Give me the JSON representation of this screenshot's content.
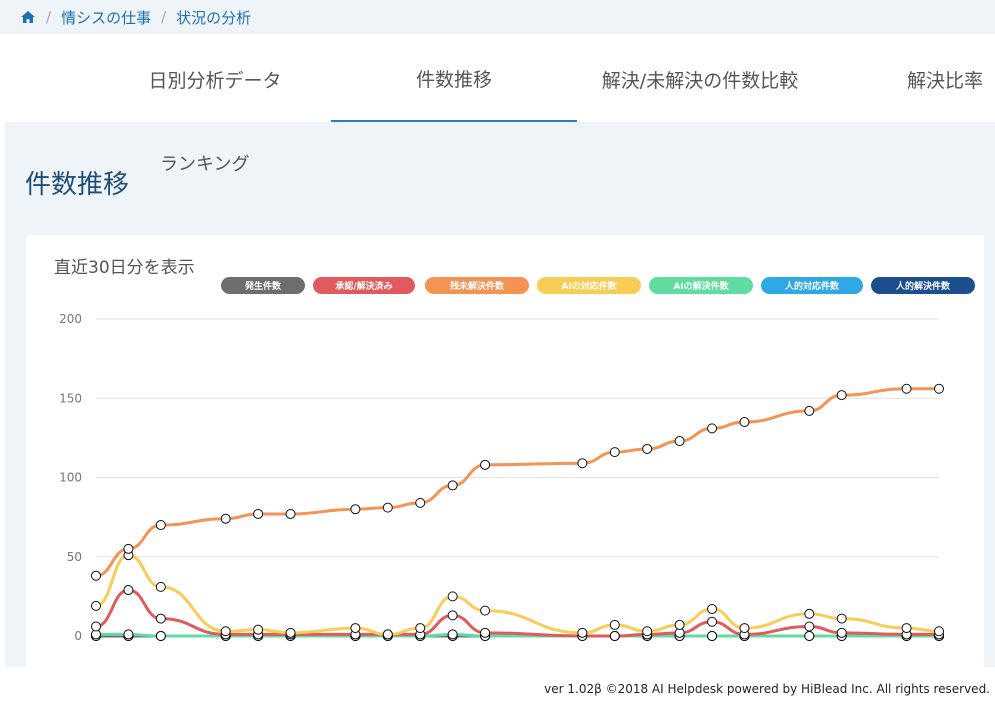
{
  "breadcrumb": {
    "home_icon": "home-icon",
    "items": [
      "情シスの仕事",
      "状況の分析"
    ]
  },
  "tabs": [
    {
      "label": "日別分析データ",
      "active": false
    },
    {
      "label": "件数推移",
      "active": true
    },
    {
      "label": "解決/未解決の件数比較",
      "active": false
    },
    {
      "label": "解決比率",
      "active": false
    }
  ],
  "page": {
    "title": "件数推移",
    "ranking_label": "ランキング"
  },
  "card": {
    "title": "直近30日分を表示"
  },
  "footer": "ver 1.02β ©2018 AI Helpdesk powered by HiBlead Inc. All rights reserved.",
  "chart_data": {
    "type": "line",
    "title": "",
    "xlabel": "",
    "ylabel": "",
    "ylim": [
      0,
      200
    ],
    "yticks": [
      0,
      50,
      100,
      150,
      200
    ],
    "grid": true,
    "legend_position": "top-right",
    "x": [
      0,
      1,
      2,
      4,
      5,
      6,
      8,
      9,
      10,
      11,
      12,
      15,
      16,
      17,
      18,
      19,
      20,
      22,
      23,
      25,
      26
    ],
    "series": [
      {
        "name": "発生件数",
        "color": "#6e6e6e",
        "values": [
          0,
          0,
          0,
          0,
          0,
          0,
          0,
          0,
          0,
          0,
          0,
          0,
          0,
          0,
          0,
          0,
          0,
          0,
          0,
          0,
          0
        ]
      },
      {
        "name": "承認/解決済み",
        "color": "#e05a5e",
        "values": [
          6,
          29,
          11,
          1,
          1,
          1,
          1,
          1,
          1,
          13,
          2,
          0,
          0,
          1,
          2,
          9,
          1,
          6,
          2,
          1,
          1
        ]
      },
      {
        "name": "残未解決件数",
        "color": "#f39454",
        "values": [
          38,
          55,
          70,
          74,
          77,
          77,
          80,
          81,
          84,
          95,
          108,
          109,
          116,
          118,
          123,
          131,
          135,
          142,
          152,
          156,
          156
        ]
      },
      {
        "name": "AIの対応件数",
        "color": "#f8cd55",
        "values": [
          19,
          51,
          31,
          3,
          4,
          2,
          5,
          1,
          5,
          25,
          16,
          2,
          7,
          3,
          7,
          17,
          5,
          14,
          11,
          5,
          3
        ]
      },
      {
        "name": "AIの解決件数",
        "color": "#60dca0",
        "values": [
          1,
          1,
          0,
          0,
          0,
          0,
          0,
          0,
          0,
          1,
          0,
          0,
          0,
          0,
          0,
          0,
          0,
          0,
          0,
          0,
          0
        ]
      },
      {
        "name": "人的対応件数",
        "color": "#2fa8e6",
        "values": [
          0,
          0,
          0,
          0,
          0,
          0,
          0,
          0,
          0,
          0,
          0,
          0,
          0,
          0,
          0,
          0,
          0,
          0,
          0,
          0,
          0
        ]
      },
      {
        "name": "人的解決件数",
        "color": "#1a4e8c",
        "values": [
          0,
          0,
          0,
          0,
          0,
          0,
          0,
          0,
          0,
          0,
          0,
          0,
          0,
          0,
          0,
          0,
          0,
          0,
          0,
          0,
          0
        ]
      }
    ]
  }
}
